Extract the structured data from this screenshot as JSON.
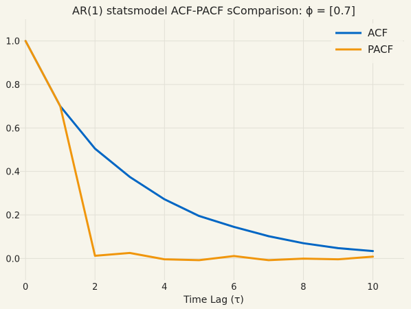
{
  "chart_data": {
    "type": "line",
    "title": "AR(1) statsmodel ACF-PACF sComparison: ϕ = [0.7]",
    "xlabel": "Time Lag (τ)",
    "ylabel": "",
    "xlim": [
      -0.3,
      10.9
    ],
    "ylim": [
      -0.1,
      1.1
    ],
    "x": [
      0,
      1,
      2,
      3,
      4,
      5,
      6,
      7,
      8,
      9,
      10
    ],
    "xticks": [
      0,
      2,
      4,
      6,
      8,
      10
    ],
    "xtick_labels": [
      "0",
      "2",
      "4",
      "6",
      "8",
      "10"
    ],
    "yticks": [
      0.0,
      0.2,
      0.4,
      0.6,
      0.8,
      1.0
    ],
    "ytick_labels": [
      "0.0",
      "0.2",
      "0.4",
      "0.6",
      "0.8",
      "1.0"
    ],
    "grid": true,
    "legend_position": "top-right",
    "series": [
      {
        "name": "ACF",
        "color": "#0066c4",
        "values": [
          1.0,
          0.7,
          0.505,
          0.375,
          0.272,
          0.195,
          0.145,
          0.102,
          0.07,
          0.047,
          0.034
        ]
      },
      {
        "name": "PACF",
        "color": "#f0960c",
        "values": [
          1.0,
          0.7,
          0.012,
          0.025,
          -0.004,
          -0.008,
          0.011,
          -0.008,
          -0.001,
          -0.004,
          0.008
        ]
      }
    ]
  }
}
